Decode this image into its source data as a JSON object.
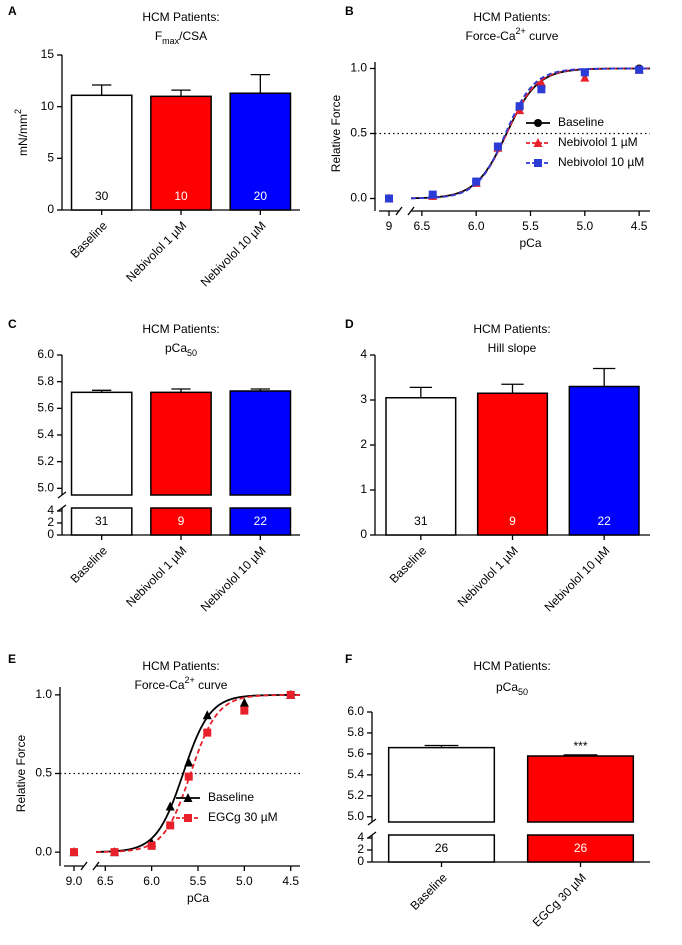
{
  "chart_data": [
    {
      "type": "bar",
      "panel": "A",
      "title": "HCM Patients:",
      "subtitle": [
        {
          "text": "F"
        },
        {
          "text": "max",
          "shift": "sub"
        },
        {
          "text": "/CSA"
        }
      ],
      "ylabel": [
        {
          "text": "mN/mm"
        },
        {
          "text": "2",
          "shift": "sup"
        }
      ],
      "categories": [
        "Baseline",
        "Nebivolol 1 µM",
        "Nebivolol 10 µM"
      ],
      "values": [
        11.1,
        11.0,
        11.3
      ],
      "errors": [
        1.0,
        0.6,
        1.8
      ],
      "n_labels": [
        30,
        10,
        20
      ],
      "colors": [
        "#ffffff",
        "#ff0000",
        "#0000ff"
      ],
      "ylim": [
        0,
        15
      ],
      "yticks": [
        0,
        5,
        10,
        15
      ]
    },
    {
      "type": "line",
      "panel": "B",
      "title": "HCM Patients:",
      "subtitle": [
        {
          "text": "Force-Ca"
        },
        {
          "text": "2+",
          "shift": "sup"
        },
        {
          "text": " curve"
        }
      ],
      "xlabel": "pCa",
      "ylabel": "Relative Force",
      "x": [
        9,
        6.4,
        6.0,
        5.8,
        5.6,
        5.4,
        5.0,
        4.5
      ],
      "xlim": [
        9.2,
        4.4
      ],
      "x_break": [
        8.8,
        6.6
      ],
      "xticks": [
        9,
        6.5,
        {
          "value": 6,
          "label": "6.0"
        },
        5.5,
        {
          "value": 5,
          "label": "5.0"
        },
        4.5
      ],
      "ylim": [
        -0.05,
        1.05
      ],
      "yticks": [
        {
          "value": 0,
          "label": "0.0"
        },
        0.5,
        {
          "value": 1,
          "label": "1.0"
        }
      ],
      "reference_line": 0.5,
      "legend": "lower right",
      "series": [
        {
          "name": "Baseline",
          "color": "#000000",
          "marker": "circle",
          "dashed": false,
          "fit": {
            "pca50": 5.72,
            "hill": 3.05
          },
          "values": [
            0,
            0.02,
            0.13,
            0.4,
            0.7,
            0.86,
            0.97,
            1.0
          ]
        },
        {
          "name": "Nebivolol 1 µM",
          "color": "#e8202a",
          "marker": "triangle",
          "dashed": true,
          "fit": {
            "pca50": 5.72,
            "hill": 3.15
          },
          "values": [
            0,
            0.02,
            0.12,
            0.39,
            0.68,
            0.89,
            0.93,
            0.99
          ]
        },
        {
          "name": "Nebivolol 10 µM",
          "color": "#2a3bd6",
          "marker": "square",
          "dashed": true,
          "fit": {
            "pca50": 5.73,
            "hill": 3.3
          },
          "values": [
            0,
            0.03,
            0.13,
            0.4,
            0.71,
            0.84,
            0.97,
            0.99
          ]
        }
      ]
    },
    {
      "type": "bar",
      "panel": "C",
      "title": "HCM Patients:",
      "subtitle": [
        {
          "text": "pCa"
        },
        {
          "text": "50",
          "shift": "sub"
        }
      ],
      "categories": [
        "Baseline",
        "Nebivolol 1 µM",
        "Nebivolol 10 µM"
      ],
      "values": [
        5.72,
        5.72,
        5.73
      ],
      "errors": [
        0.015,
        0.025,
        0.015
      ],
      "n_labels": [
        31,
        9,
        22
      ],
      "colors": [
        "#ffffff",
        "#ff0000",
        "#0000ff"
      ],
      "ylim": [
        0,
        6
      ],
      "y_break": [
        4.5,
        4.95
      ],
      "yticks": [
        0,
        2,
        4,
        {
          "value": 5,
          "label": "5.0"
        },
        5.2,
        5.4,
        5.6,
        5.8,
        {
          "value": 6,
          "label": "6.0"
        }
      ]
    },
    {
      "type": "bar",
      "panel": "D",
      "title": "HCM Patients:",
      "subtitle": [
        {
          "text": "Hill slope"
        }
      ],
      "categories": [
        "Baseline",
        "Nebivolol 1 µM",
        "Nebivolol 10 µM"
      ],
      "values": [
        3.05,
        3.15,
        3.3
      ],
      "errors": [
        0.23,
        0.2,
        0.4
      ],
      "n_labels": [
        31,
        9,
        22
      ],
      "colors": [
        "#ffffff",
        "#ff0000",
        "#0000ff"
      ],
      "ylim": [
        0,
        4
      ],
      "yticks": [
        0,
        1,
        2,
        3,
        4
      ]
    },
    {
      "type": "line",
      "panel": "E",
      "title": "HCM Patients:",
      "subtitle": [
        {
          "text": "Force-Ca"
        },
        {
          "text": "2+",
          "shift": "sup"
        },
        {
          "text": " curve"
        }
      ],
      "xlabel": "pCa",
      "ylabel": "Relative Force",
      "x": [
        9,
        6.4,
        6.0,
        5.8,
        5.6,
        5.4,
        5.0,
        4.5
      ],
      "xlim": [
        9.2,
        4.4
      ],
      "x_break": [
        8.8,
        6.6
      ],
      "xticks": [
        {
          "value": 9,
          "label": "9.0"
        },
        6.5,
        {
          "value": 6,
          "label": "6.0"
        },
        5.5,
        {
          "value": 5,
          "label": "5.0"
        },
        4.5
      ],
      "ylim": [
        -0.05,
        1.05
      ],
      "yticks": [
        {
          "value": 0,
          "label": "0.0"
        },
        0.5,
        {
          "value": 1,
          "label": "1.0"
        }
      ],
      "reference_line": 0.5,
      "legend": "lower right",
      "series": [
        {
          "name": "Baseline",
          "color": "#000000",
          "marker": "triangle",
          "dashed": false,
          "fit": {
            "pca50": 5.66,
            "hill": 3.0
          },
          "values": [
            0,
            0,
            0.06,
            0.29,
            0.57,
            0.87,
            0.95,
            1.0
          ]
        },
        {
          "name": "EGCg 30 µM",
          "color": "#e8202a",
          "marker": "square",
          "dashed": true,
          "fit": {
            "pca50": 5.58,
            "hill": 3.0
          },
          "values": [
            0,
            0,
            0.04,
            0.17,
            0.48,
            0.76,
            0.9,
            1.0
          ]
        }
      ]
    },
    {
      "type": "bar",
      "panel": "F",
      "title": "HCM Patients:",
      "subtitle": [
        {
          "text": "pCa"
        },
        {
          "text": "50",
          "shift": "sub"
        }
      ],
      "categories": [
        "Baseline",
        "EGCg 30 µM"
      ],
      "values": [
        5.66,
        5.58
      ],
      "errors": [
        0.02,
        0.01
      ],
      "n_labels": [
        26,
        26
      ],
      "colors": [
        "#ffffff",
        "#ff0000"
      ],
      "annotations": [
        {
          "text": "***",
          "category": 1
        }
      ],
      "ylim": [
        0,
        6
      ],
      "y_break": [
        4.5,
        4.95
      ],
      "yticks": [
        0,
        2,
        4,
        {
          "value": 5,
          "label": "5.0"
        },
        5.2,
        5.4,
        5.6,
        5.8,
        {
          "value": 6,
          "label": "6.0"
        }
      ]
    }
  ]
}
